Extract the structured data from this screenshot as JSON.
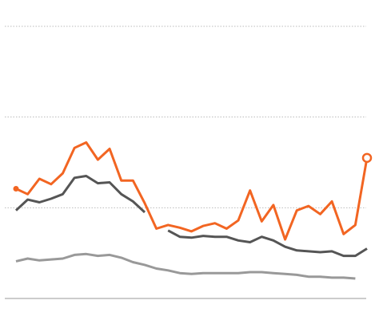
{
  "chart_data": {
    "type": "line",
    "categories": [
      null,
      null,
      null,
      null,
      null,
      null,
      null,
      null,
      null,
      null,
      null,
      null,
      null,
      null,
      null,
      null,
      null,
      null,
      null,
      null,
      null,
      null,
      null,
      null,
      null,
      null,
      null,
      null,
      null,
      null,
      null
    ],
    "series": [
      {
        "color": "#f26522",
        "values": [
          1.21,
          1.15,
          1.32,
          1.26,
          1.38,
          1.66,
          1.72,
          1.53,
          1.65,
          1.3,
          1.3,
          1.05,
          0.77,
          0.81,
          0.78,
          0.74,
          0.8,
          0.83,
          0.77,
          0.86,
          1.19,
          0.85,
          1.03,
          0.65,
          0.97,
          1.02,
          0.93,
          1.07,
          0.71,
          0.81,
          1.55
        ]
      },
      {
        "color": "#555555",
        "values": [
          0.97,
          1.09,
          1.06,
          1.1,
          1.15,
          1.33,
          1.35,
          1.27,
          1.28,
          1.15,
          1.07,
          0.95,
          null,
          0.75,
          0.68,
          0.67,
          0.69,
          0.68,
          0.68,
          0.64,
          0.62,
          0.68,
          0.64,
          0.57,
          0.53,
          0.52,
          0.51,
          0.52,
          0.47,
          0.47,
          0.55
        ]
      },
      {
        "color": "#999999",
        "values": [
          0.41,
          0.44,
          0.42,
          0.43,
          0.44,
          0.48,
          0.49,
          0.47,
          0.48,
          0.45,
          0.4,
          0.37,
          0.33,
          0.31,
          0.28,
          0.27,
          0.28,
          0.28,
          0.28,
          0.28,
          0.29,
          0.29,
          0.28,
          0.27,
          0.26,
          0.24,
          0.24,
          0.23,
          0.23,
          0.22,
          null
        ]
      }
    ],
    "ylim": [
      0,
      3
    ],
    "yticks": [
      0,
      1,
      2,
      3
    ],
    "grid": true
  }
}
